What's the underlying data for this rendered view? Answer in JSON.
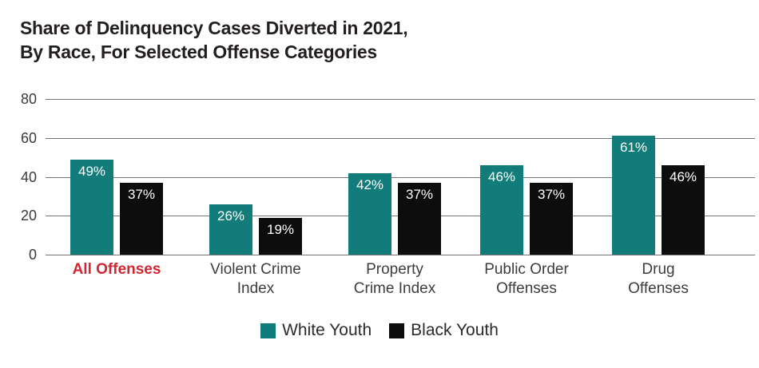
{
  "title": {
    "line1": "Share of Delinquency Cases Diverted in 2021,",
    "line2": "By Race, For Selected Offense Categories"
  },
  "colors": {
    "teal": "#117c79",
    "black": "#0d0d0d",
    "highlight_red": "#d22630",
    "gridline": "#757575",
    "title_text": "#231f20",
    "axis_text": "#3a3a3a"
  },
  "chart_data": {
    "type": "bar",
    "title": "Share of Delinquency Cases Diverted in 2021, By Race, For Selected Offense Categories",
    "categories": [
      "All Offenses",
      "Violent Crime\nIndex",
      "Property\nCrime Index",
      "Public Order\nOffenses",
      "Drug\nOffenses"
    ],
    "series": [
      {
        "name": "White Youth",
        "color": "#117c79",
        "values": [
          49,
          26,
          42,
          46,
          61
        ],
        "value_labels": [
          "49%",
          "26%",
          "42%",
          "46%",
          "61%"
        ]
      },
      {
        "name": "Black Youth",
        "color": "#0d0d0d",
        "values": [
          37,
          19,
          37,
          37,
          46
        ],
        "value_labels": [
          "37%",
          "19%",
          "37%",
          "37%",
          "46%"
        ]
      }
    ],
    "unit": "%",
    "yticks": [
      0,
      20,
      40,
      60,
      80
    ],
    "ylim": [
      0,
      80
    ],
    "grid": true,
    "legend_position": "bottom",
    "highlight_category_index": 0,
    "highlight_category_color": "#d22630"
  },
  "legend": {
    "items": [
      {
        "label": "White Youth",
        "color": "#117c79"
      },
      {
        "label": "Black Youth",
        "color": "#0d0d0d"
      }
    ]
  }
}
